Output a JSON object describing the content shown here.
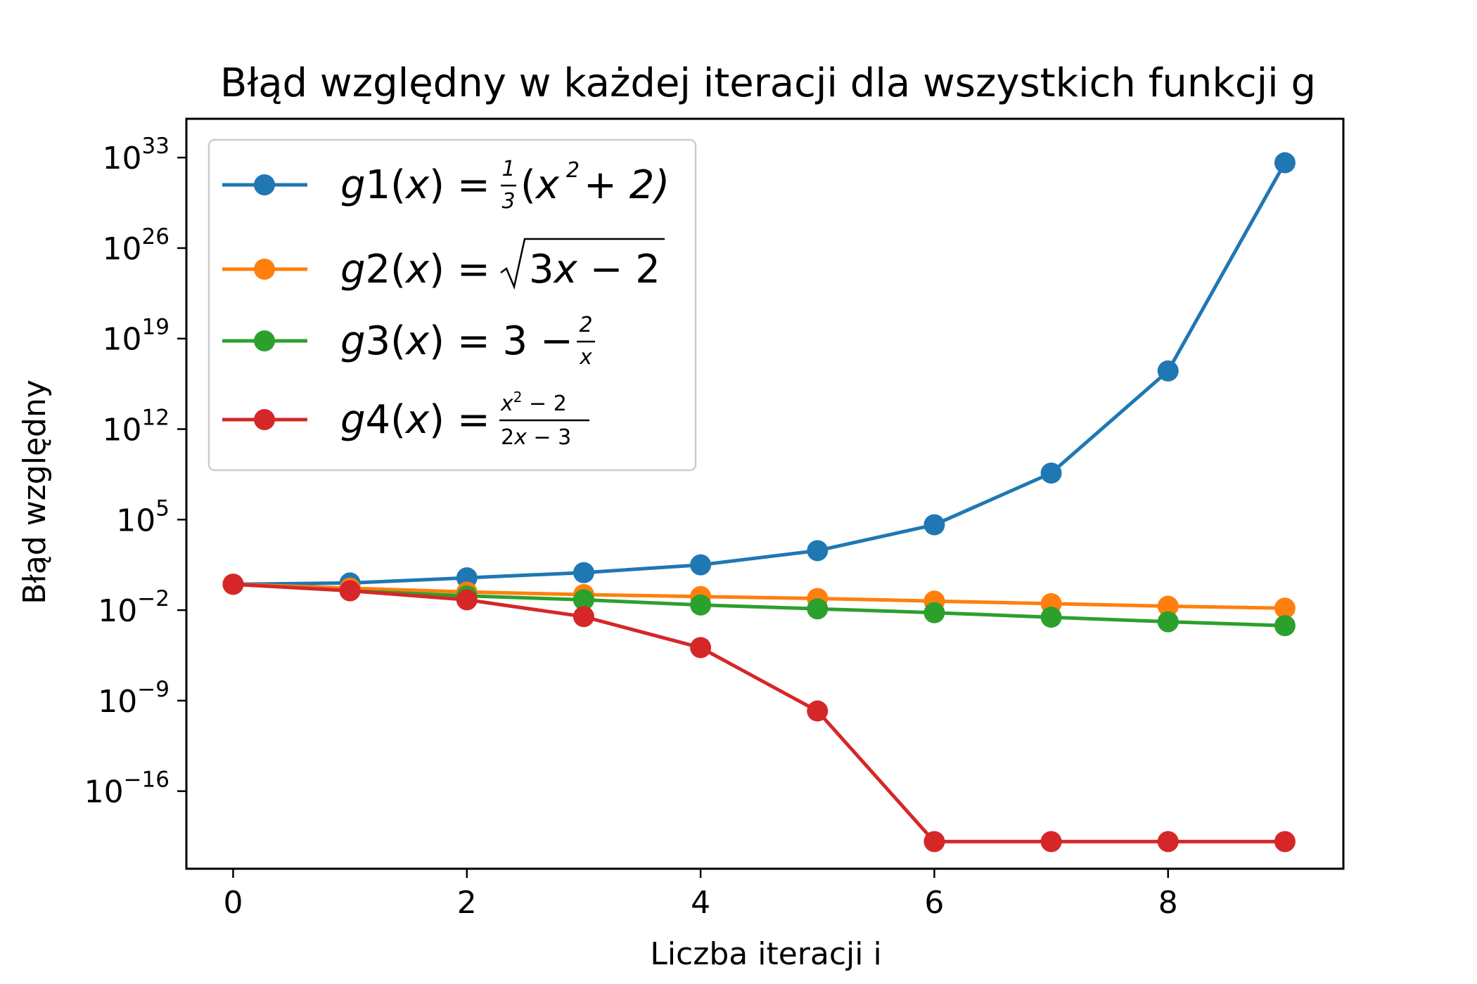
{
  "chart_data": {
    "type": "line",
    "title": "Błąd względny w każdej iteracji dla wszystkich funkcji g",
    "xlabel": "Liczba iteracji i",
    "ylabel": "Błąd względny",
    "yscale": "log",
    "xlim": [
      -0.4,
      9.5
    ],
    "ylog10_lim": [
      -22,
      36
    ],
    "xticks": [
      0,
      2,
      4,
      6,
      8
    ],
    "yticks_exp": [
      -16,
      -9,
      -2,
      5,
      12,
      19,
      26,
      33
    ],
    "grid": false,
    "legend_position": "upper-left",
    "x": [
      0,
      1,
      2,
      3,
      4,
      5,
      6,
      7,
      8,
      9
    ],
    "series": [
      {
        "name": "g1(x) = 1/3(x² + 2)",
        "color": "#1f77b4",
        "log10_values": [
          0.0,
          0.1,
          0.5,
          0.9,
          1.5,
          2.6,
          4.6,
          8.6,
          16.5,
          32.6
        ]
      },
      {
        "name": "g2(x) = √(3x − 2)",
        "color": "#ff7f0e",
        "log10_values": [
          0.0,
          -0.3,
          -0.6,
          -0.8,
          -0.95,
          -1.1,
          -1.3,
          -1.5,
          -1.7,
          -1.85
        ]
      },
      {
        "name": "g3(x) = 3 − 2/x",
        "color": "#2ca02c",
        "log10_values": [
          0.0,
          -0.5,
          -0.9,
          -1.2,
          -1.6,
          -1.9,
          -2.2,
          -2.55,
          -2.9,
          -3.2
        ]
      },
      {
        "name": "g4(x) = (x² − 2)/(2x − 3)",
        "color": "#d62728",
        "log10_values": [
          0.0,
          -0.5,
          -1.2,
          -2.5,
          -4.9,
          -9.8,
          -19.9,
          -19.9,
          -19.9,
          -19.9
        ]
      }
    ]
  }
}
